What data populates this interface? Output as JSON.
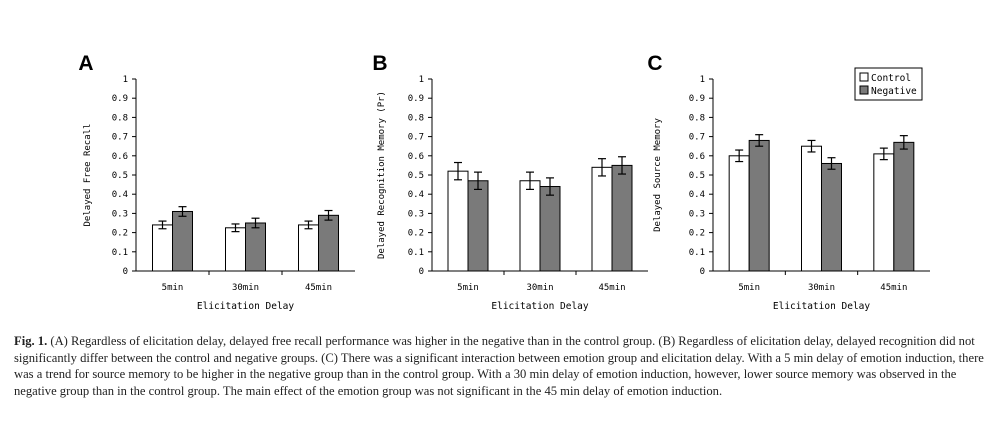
{
  "chart_data": [
    {
      "type": "bar",
      "panel": "A",
      "ylabel": "Delayed Free Recall",
      "xlabel": "Elicitation Delay",
      "categories": [
        "5min",
        "30min",
        "45min"
      ],
      "ylim": [
        0,
        1
      ],
      "yticks": [
        "0",
        "0.1",
        "0.2",
        "0.3",
        "0.4",
        "0.5",
        "0.6",
        "0.7",
        "0.8",
        "0.9",
        "1"
      ],
      "series": [
        {
          "name": "Control",
          "values": [
            0.24,
            0.225,
            0.24
          ],
          "errors": [
            0.02,
            0.02,
            0.02
          ]
        },
        {
          "name": "Negative",
          "values": [
            0.31,
            0.25,
            0.29
          ],
          "errors": [
            0.025,
            0.025,
            0.025
          ]
        }
      ]
    },
    {
      "type": "bar",
      "panel": "B",
      "ylabel": "Delayed Recognition Memory (Pr)",
      "xlabel": "Elicitation Delay",
      "categories": [
        "5min",
        "30min",
        "45min"
      ],
      "ylim": [
        0,
        1
      ],
      "yticks": [
        "0",
        "0.1",
        "0.2",
        "0.3",
        "0.4",
        "0.5",
        "0.6",
        "0.7",
        "0.8",
        "0.9",
        "1"
      ],
      "series": [
        {
          "name": "Control",
          "values": [
            0.52,
            0.47,
            0.54
          ],
          "errors": [
            0.045,
            0.045,
            0.045
          ]
        },
        {
          "name": "Negative",
          "values": [
            0.47,
            0.44,
            0.55
          ],
          "errors": [
            0.045,
            0.045,
            0.045
          ]
        }
      ]
    },
    {
      "type": "bar",
      "panel": "C",
      "ylabel": "Delayed Source Memory",
      "xlabel": "Elicitation Delay",
      "categories": [
        "5min",
        "30min",
        "45min"
      ],
      "ylim": [
        0,
        1
      ],
      "yticks": [
        "0",
        "0.1",
        "0.2",
        "0.3",
        "0.4",
        "0.5",
        "0.6",
        "0.7",
        "0.8",
        "0.9",
        "1"
      ],
      "legend_placement": "top-right",
      "series": [
        {
          "name": "Control",
          "values": [
            0.6,
            0.65,
            0.61
          ],
          "errors": [
            0.03,
            0.03,
            0.03
          ]
        },
        {
          "name": "Negative",
          "values": [
            0.68,
            0.56,
            0.67
          ],
          "errors": [
            0.03,
            0.03,
            0.035
          ]
        }
      ]
    }
  ],
  "colors": {
    "control": "#ffffff",
    "negative": "#7a7a7a",
    "axis": "#000000"
  },
  "caption": {
    "lead": "Fig. 1.",
    "text": " (A) Regardless of elicitation delay, delayed free recall performance was higher in the negative than in the control group. (B) Regardless of elicitation delay, delayed recognition did not significantly differ between the control and negative groups. (C) There was a significant interaction between emotion group and elicitation delay. With a 5 min delay of emotion induction, there was a trend for source memory to be higher in the negative group than in the control group. With a 30 min delay of emotion induction, however, lower source memory was observed in the negative group than in the control group. The main effect of the emotion group was not significant in the 45 min delay of emotion induction."
  }
}
